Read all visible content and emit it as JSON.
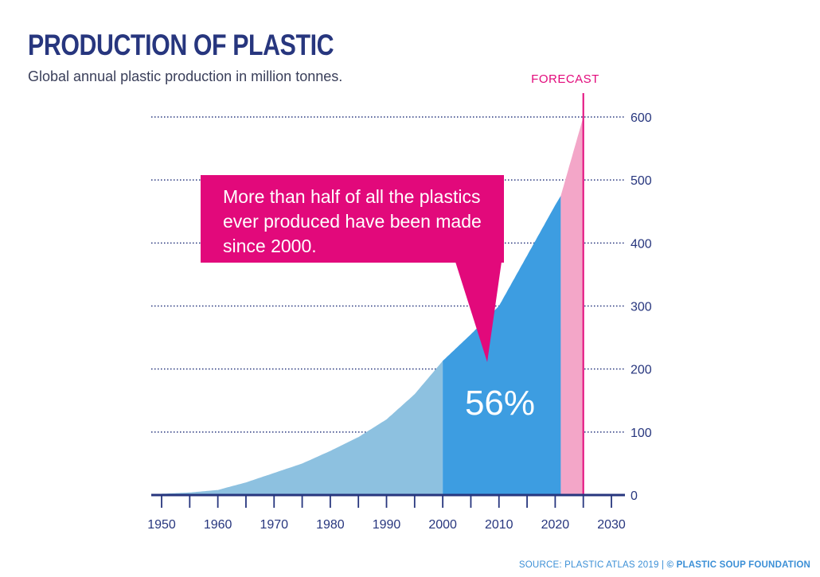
{
  "title": "PRODUCTION OF PLASTIC",
  "subtitle": "Global annual plastic production in million tonnes.",
  "source": "SOURCE: PLASTIC ATLAS 2019 | ",
  "source_brand": "© PLASTIC SOUP FOUNDATION",
  "chart_data": {
    "type": "area",
    "x": [
      1950,
      1955,
      1960,
      1965,
      1970,
      1975,
      1980,
      1985,
      1990,
      1995,
      2000,
      2005,
      2010,
      2015,
      2020,
      2021,
      2025
    ],
    "y": [
      2,
      4,
      8,
      20,
      35,
      50,
      70,
      92,
      120,
      160,
      213,
      255,
      300,
      380,
      460,
      475,
      600
    ],
    "xlim": [
      1950,
      2030
    ],
    "ylim": [
      0,
      600
    ],
    "xticks": [
      1950,
      1960,
      1970,
      1980,
      1990,
      2000,
      2010,
      2020,
      2030
    ],
    "yticks": [
      0,
      100,
      200,
      300,
      400,
      500,
      600
    ],
    "grid": true,
    "segments": [
      {
        "from": 1950,
        "to": 2000,
        "color": "#8dc1e0"
      },
      {
        "from": 2000,
        "to": 2021,
        "color": "#3d9de1"
      },
      {
        "from": 2021,
        "to": 2025,
        "color": "#f3a6c8"
      }
    ],
    "forecast_label": "FORECAST",
    "forecast_line_year": 2025,
    "accent": "#e2097b",
    "axis_color": "#27367e",
    "annotation": "More than half of all the plastics ever produced have been made since 2000.",
    "share_label": "56%"
  }
}
